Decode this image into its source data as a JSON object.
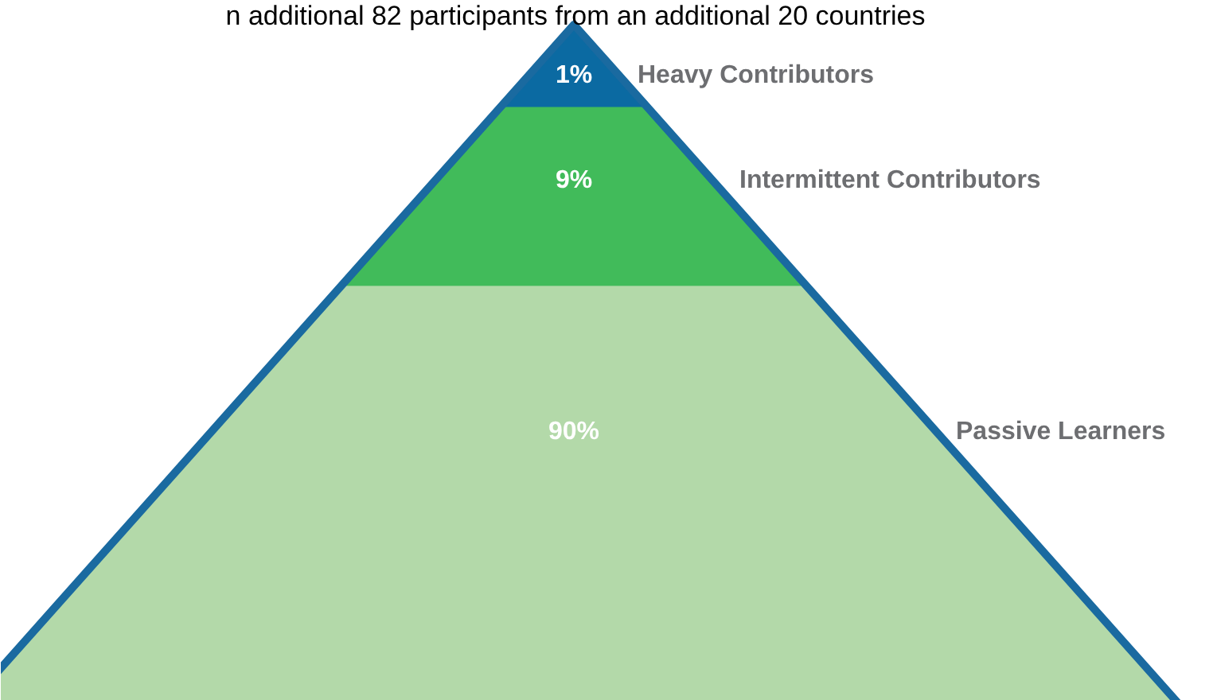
{
  "chart_data": {
    "type": "other",
    "title": "n additional 82 participants from an additional 20 countries",
    "categories": [
      "Heavy Contributors",
      "Intermittent Contributors",
      "Passive Learners"
    ],
    "values": [
      1,
      9,
      90
    ],
    "colors": [
      "#0b6aa2",
      "#41bb5a",
      "#b3d9a9"
    ],
    "value_labels": [
      "1%",
      "9%",
      "90%"
    ]
  }
}
